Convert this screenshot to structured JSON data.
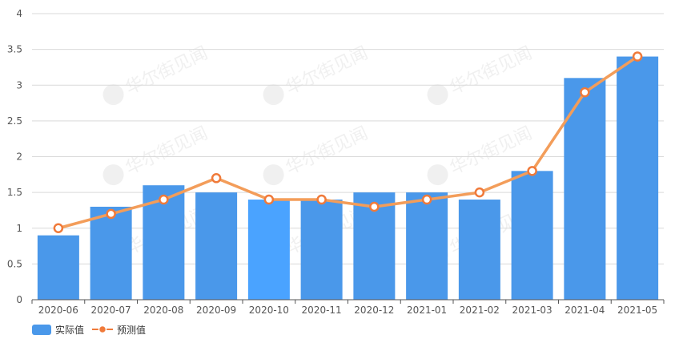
{
  "chart_data": {
    "type": "bar",
    "categories": [
      "2020-06",
      "2020-07",
      "2020-08",
      "2020-09",
      "2020-10",
      "2020-11",
      "2020-12",
      "2021-01",
      "2021-02",
      "2021-03",
      "2021-04",
      "2021-05"
    ],
    "series": [
      {
        "name": "实际值",
        "type": "bar",
        "values": [
          0.9,
          1.3,
          1.6,
          1.5,
          1.4,
          1.4,
          1.5,
          1.5,
          1.4,
          1.8,
          3.1,
          3.4
        ]
      },
      {
        "name": "预测值",
        "type": "line",
        "values": [
          1.0,
          1.2,
          1.4,
          1.7,
          1.4,
          1.4,
          1.3,
          1.4,
          1.5,
          1.8,
          2.9,
          3.4
        ]
      }
    ],
    "ylim": [
      0,
      4
    ],
    "yticks": [
      "0",
      "0.5",
      "1",
      "1.5",
      "2",
      "2.5",
      "3",
      "3.5",
      "4"
    ],
    "title": "",
    "xlabel": "",
    "ylabel": "",
    "grid": "horizontal",
    "legend_position": "bottom-left",
    "highlighted_category": "2020-10",
    "watermark": "华尔街见闻",
    "colors": {
      "bar": "#4a98ea",
      "bar_highlight": "#4aa3ff",
      "line": "#f39d5a",
      "point": "#f07a3a",
      "grid": "#d9d9d9",
      "axis": "#555555"
    }
  }
}
